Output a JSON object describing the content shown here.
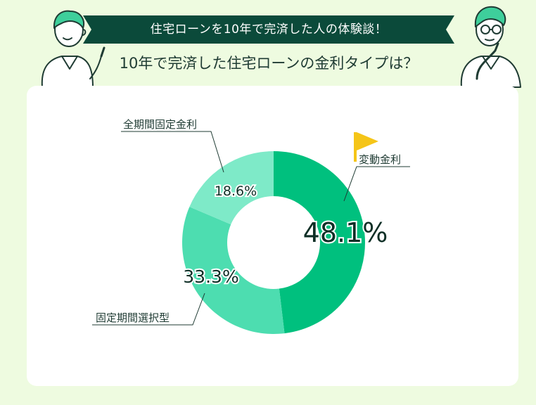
{
  "header": {
    "banner_text": "住宅ローンを10年で完済した人の体験談！",
    "question": "10年で完済した住宅ローンの金利タイプは？"
  },
  "colors": {
    "banner": "#0b4a3a",
    "slice_fixed_full": "#7eeac8",
    "slice_fixed_select": "#4dddb0",
    "slice_variable": "#00c07e",
    "flag": "#f5c518",
    "page_bg": "#eefbe0"
  },
  "icons": [
    "person-pointing-illustration",
    "person-thinking-illustration",
    "flag-icon"
  ],
  "chart_data": {
    "type": "pie",
    "donut": true,
    "categories": [
      "変動金利",
      "固定期間選択型",
      "全期間固定金利"
    ],
    "values": [
      48.1,
      33.3,
      18.6
    ],
    "value_labels": [
      "48.1%",
      "33.3%",
      "18.6%"
    ],
    "title": ""
  }
}
